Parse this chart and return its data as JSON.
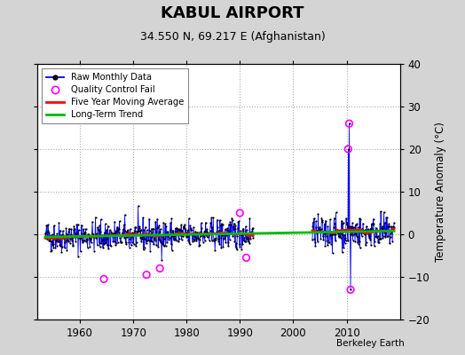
{
  "title": "KABUL AIRPORT",
  "subtitle": "34.550 N, 69.217 E (Afghanistan)",
  "ylabel": "Temperature Anomaly (°C)",
  "credit": "Berkeley Earth",
  "xlim": [
    1952,
    2020
  ],
  "ylim": [
    -20,
    40
  ],
  "yticks": [
    -20,
    -10,
    0,
    10,
    20,
    30,
    40
  ],
  "xticks": [
    1960,
    1970,
    1980,
    1990,
    2000,
    2010
  ],
  "fig_bg": "#d4d4d4",
  "plot_bg": "#ffffff",
  "raw_color": "#0000ff",
  "ma_color": "#ff0000",
  "trend_color": "#00bb00",
  "qc_color": "#ff00ff",
  "title_fontsize": 13,
  "subtitle_fontsize": 9,
  "seed": 42,
  "gap_start": 1992.5,
  "gap_end": 2003.5,
  "noise_std": 1.8,
  "t_start": 1953.5,
  "t_end": 2019.0,
  "qc_times": [
    1964.5,
    1972.5,
    1975.0,
    1990.0,
    1991.2,
    2010.3,
    2010.5,
    2010.75
  ],
  "qc_values": [
    -10.5,
    -9.5,
    -8.0,
    5.0,
    -5.5,
    20,
    26,
    -13
  ]
}
